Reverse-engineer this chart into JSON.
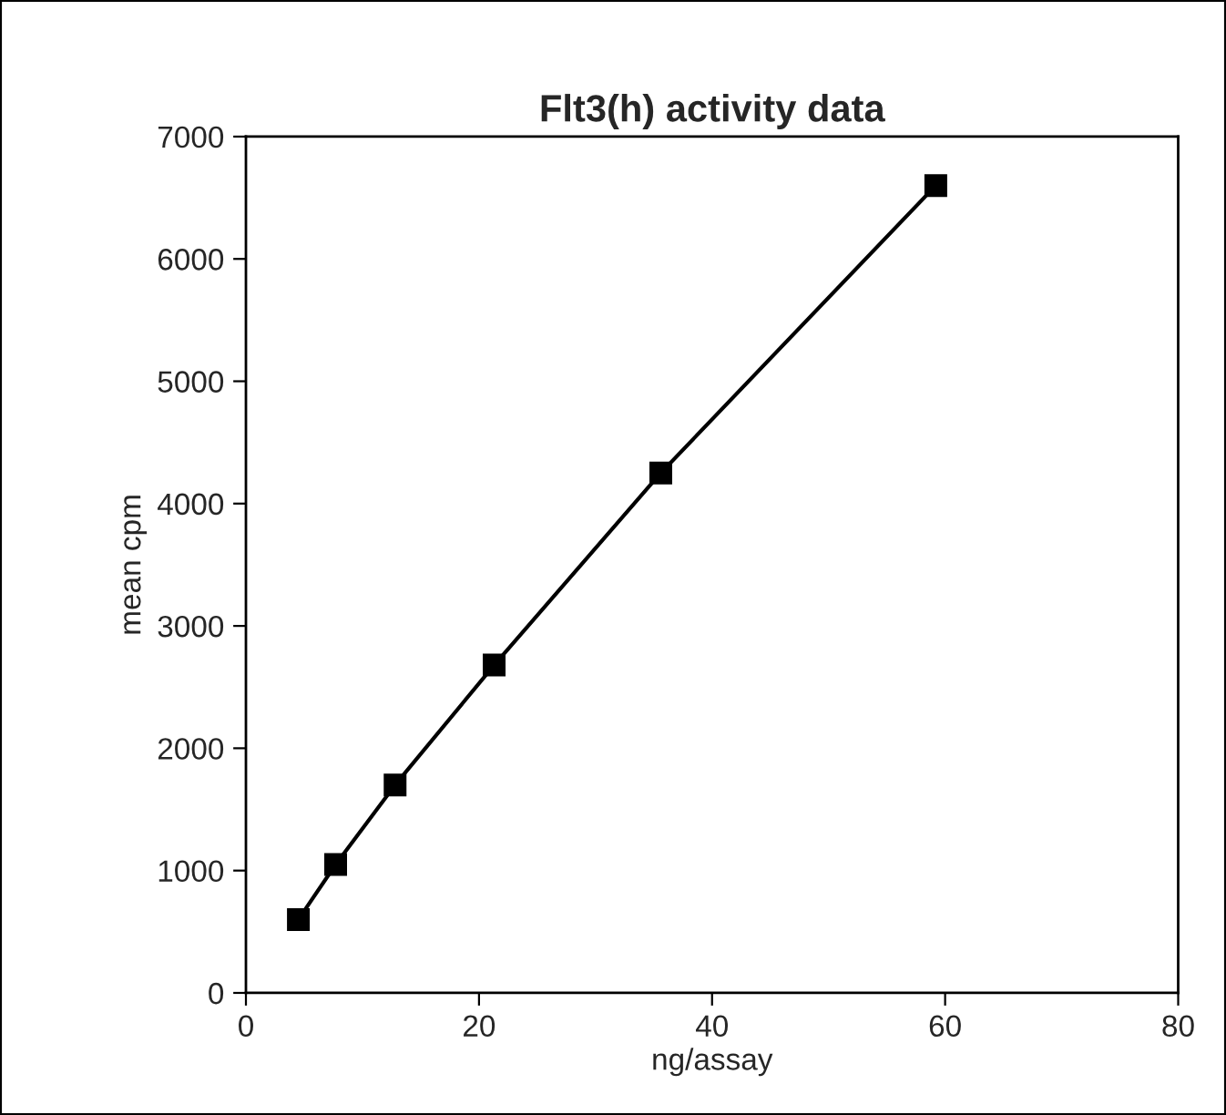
{
  "chart_data": {
    "type": "line",
    "title": "Flt3(h) activity data",
    "xlabel": "ng/assay",
    "ylabel": "mean cpm",
    "series": [
      {
        "color": "#000000",
        "x": [
          4.5,
          7.7,
          12.8,
          21.3,
          35.6,
          59.2
        ],
        "values": [
          600,
          1050,
          1700,
          2680,
          4250,
          6600
        ]
      }
    ],
    "xlim": [
      0,
      80
    ],
    "xticks": [
      0,
      20,
      40,
      60,
      80
    ],
    "ylim": [
      0,
      7000
    ],
    "yticks": [
      0,
      1000,
      2000,
      3000,
      4000,
      5000,
      6000,
      7000
    ],
    "grid": false,
    "legend": false,
    "marker": "square",
    "line_style": "solid"
  }
}
